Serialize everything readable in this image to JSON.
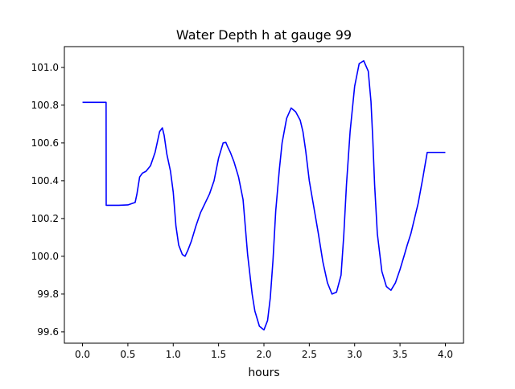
{
  "chart_data": {
    "type": "line",
    "title": "Water Depth h at gauge 99",
    "xlabel": "hours",
    "ylabel": "",
    "xlim": [
      -0.2,
      4.2
    ],
    "ylim": [
      99.54,
      101.11
    ],
    "xticks": [
      0.0,
      0.5,
      1.0,
      1.5,
      2.0,
      2.5,
      3.0,
      3.5,
      4.0
    ],
    "xtick_labels": [
      "0.0",
      "0.5",
      "1.0",
      "1.5",
      "2.0",
      "2.5",
      "3.0",
      "3.5",
      "4.0"
    ],
    "yticks": [
      99.6,
      99.8,
      100.0,
      100.2,
      100.4,
      100.6,
      100.8,
      101.0
    ],
    "ytick_labels": [
      "99.6",
      "99.8",
      "100.0",
      "100.2",
      "100.4",
      "100.6",
      "100.8",
      "101.0"
    ],
    "grid": false,
    "legend": "none",
    "series": [
      {
        "color": "#0000ff",
        "x": [
          0.0,
          0.26,
          0.261,
          0.3,
          0.4,
          0.5,
          0.58,
          0.6,
          0.63,
          0.66,
          0.7,
          0.75,
          0.8,
          0.85,
          0.88,
          0.9,
          0.93,
          0.97,
          1.0,
          1.03,
          1.06,
          1.1,
          1.13,
          1.16,
          1.2,
          1.25,
          1.3,
          1.35,
          1.4,
          1.45,
          1.5,
          1.55,
          1.58,
          1.6,
          1.63,
          1.67,
          1.72,
          1.77,
          1.82,
          1.87,
          1.9,
          1.95,
          2.0,
          2.04,
          2.07,
          2.1,
          2.13,
          2.17,
          2.2,
          2.25,
          2.3,
          2.35,
          2.4,
          2.43,
          2.46,
          2.5,
          2.55,
          2.6,
          2.65,
          2.7,
          2.75,
          2.8,
          2.85,
          2.88,
          2.91,
          2.95,
          3.0,
          3.05,
          3.1,
          3.15,
          3.18,
          3.2,
          3.22,
          3.25,
          3.3,
          3.35,
          3.4,
          3.45,
          3.5,
          3.55,
          3.58,
          3.62,
          3.65,
          3.7,
          3.75,
          3.8,
          3.85,
          3.9,
          3.95,
          4.0
        ],
        "y": [
          100.815,
          100.815,
          100.27,
          100.27,
          100.27,
          100.272,
          100.285,
          100.33,
          100.42,
          100.44,
          100.45,
          100.48,
          100.55,
          100.66,
          100.68,
          100.64,
          100.54,
          100.45,
          100.34,
          100.16,
          100.06,
          100.01,
          100.0,
          100.03,
          100.08,
          100.16,
          100.23,
          100.28,
          100.33,
          100.4,
          100.52,
          100.6,
          100.603,
          100.58,
          100.55,
          100.5,
          100.42,
          100.3,
          100.01,
          99.8,
          99.71,
          99.63,
          99.61,
          99.66,
          99.78,
          99.98,
          100.24,
          100.46,
          100.6,
          100.73,
          100.785,
          100.765,
          100.72,
          100.66,
          100.56,
          100.4,
          100.26,
          100.12,
          99.97,
          99.86,
          99.8,
          99.81,
          99.9,
          100.11,
          100.38,
          100.66,
          100.9,
          101.02,
          101.035,
          100.98,
          100.82,
          100.62,
          100.38,
          100.12,
          99.92,
          99.84,
          99.82,
          99.86,
          99.93,
          100.01,
          100.06,
          100.12,
          100.18,
          100.28,
          100.41,
          100.55,
          100.55,
          100.55,
          100.55,
          100.55
        ]
      }
    ]
  }
}
